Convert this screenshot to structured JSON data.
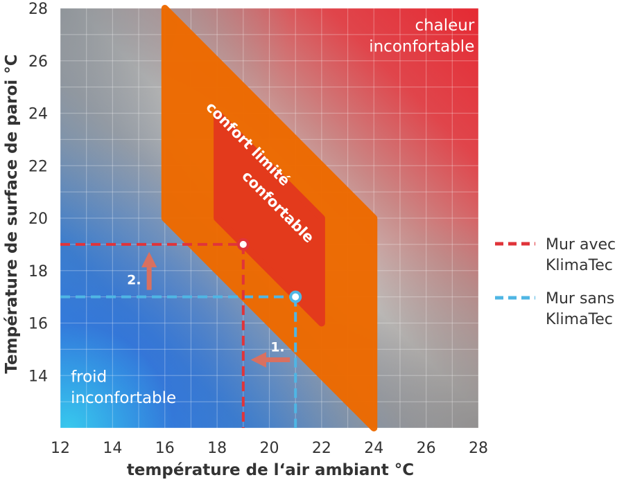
{
  "chart_data": {
    "type": "area",
    "xlabel": "température de l‘air ambiant °C",
    "ylabel": "Température de surface de paroi °C",
    "xlim": [
      12,
      28
    ],
    "ylim": [
      12,
      28
    ],
    "x_ticks": [
      12,
      14,
      16,
      18,
      20,
      22,
      24,
      26,
      28
    ],
    "y_ticks": [
      14,
      16,
      18,
      20,
      22,
      24,
      26,
      28
    ],
    "y_tick_labels": [
      "14",
      "16",
      "18",
      "20",
      "22",
      "24",
      "26",
      "28"
    ],
    "x_tick_labels": [
      "12",
      "14",
      "16",
      "18",
      "20",
      "22",
      "24",
      "26",
      "28"
    ],
    "grid": true,
    "regions": [
      {
        "name": "confort limité",
        "color": "#ee6a00",
        "polygon": [
          [
            16,
            28
          ],
          [
            24,
            20
          ],
          [
            24,
            12
          ],
          [
            16,
            20
          ]
        ]
      },
      {
        "name": "confortable",
        "color": "#e33a1c",
        "polygon": [
          [
            18,
            24
          ],
          [
            22,
            20
          ],
          [
            22,
            16
          ],
          [
            18,
            20
          ]
        ]
      }
    ],
    "region_texts": {
      "hot": "chaleur inconfortable",
      "hot_lines": [
        "chaleur",
        "inconfortable"
      ],
      "cold": "froid inconfortable",
      "cold_lines": [
        "froid",
        "inconfortable"
      ]
    },
    "series": [
      {
        "name": "Mur avec KlimaTec",
        "color": "#e0343a",
        "point": [
          19,
          19
        ]
      },
      {
        "name": "Mur sans KlimaTec",
        "color": "#4fb6e4",
        "point": [
          21,
          17
        ]
      }
    ],
    "legend": [
      {
        "lines": [
          "Mur avec",
          "KlimaTec"
        ],
        "color": "#e0343a"
      },
      {
        "lines": [
          "Mur sans",
          "KlimaTec"
        ],
        "color": "#4fb6e4"
      }
    ],
    "legend_position": "right",
    "annotations": [
      {
        "text": "1.",
        "direction": "left"
      },
      {
        "text": "2.",
        "direction": "up"
      }
    ]
  }
}
